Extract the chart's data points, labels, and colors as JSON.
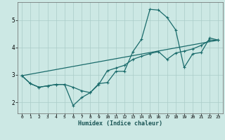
{
  "title": "",
  "xlabel": "Humidex (Indice chaleur)",
  "bg_color": "#cce8e4",
  "line_color": "#1a6b6b",
  "grid_color": "#aaccc8",
  "xlim": [
    -0.5,
    23.5
  ],
  "ylim": [
    1.6,
    5.65
  ],
  "yticks": [
    2,
    3,
    4,
    5
  ],
  "xticks": [
    0,
    1,
    2,
    3,
    4,
    5,
    6,
    7,
    8,
    9,
    10,
    11,
    12,
    13,
    14,
    15,
    16,
    17,
    18,
    19,
    20,
    21,
    22,
    23
  ],
  "line1_x": [
    0,
    1,
    2,
    3,
    4,
    5,
    6,
    7,
    8,
    9,
    10,
    11,
    12,
    13,
    14,
    15,
    16,
    17,
    18,
    19,
    20,
    21,
    22,
    23
  ],
  "line1_y": [
    2.97,
    2.68,
    2.55,
    2.6,
    2.65,
    2.65,
    1.88,
    2.17,
    2.35,
    2.68,
    2.72,
    3.13,
    3.13,
    3.85,
    4.3,
    5.4,
    5.37,
    5.1,
    4.65,
    3.27,
    3.77,
    3.82,
    4.35,
    4.27
  ],
  "line2_x": [
    0,
    1,
    2,
    3,
    4,
    5,
    6,
    7,
    8,
    9,
    10,
    11,
    12,
    13,
    14,
    15,
    16,
    17,
    18,
    19,
    20,
    21,
    22,
    23
  ],
  "line2_y": [
    2.97,
    2.68,
    2.55,
    2.6,
    2.65,
    2.65,
    2.55,
    2.42,
    2.35,
    2.65,
    3.15,
    3.25,
    3.35,
    3.57,
    3.68,
    3.78,
    3.85,
    3.57,
    3.8,
    3.87,
    3.95,
    4.08,
    4.27,
    4.27
  ],
  "line3_x": [
    0,
    23
  ],
  "line3_y": [
    2.97,
    4.27
  ]
}
